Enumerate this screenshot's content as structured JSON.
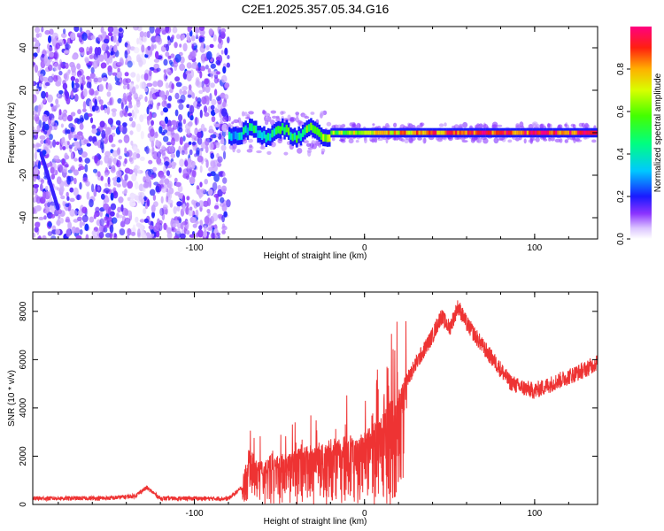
{
  "title": "C2E1.2025.357.05.34.G16",
  "chart_data": [
    {
      "type": "heatmap",
      "name": "spectrogram",
      "xlabel": "Height of straight line (km)",
      "ylabel": "Frequency (Hz)",
      "xlim": [
        -195,
        137
      ],
      "ylim": [
        -50,
        50
      ],
      "xticks": [
        {
          "v": -100,
          "t": "-100"
        },
        {
          "v": 0,
          "t": "0"
        },
        {
          "v": 100,
          "t": "100"
        }
      ],
      "yticks": [
        {
          "v": -40,
          "t": "-40"
        },
        {
          "v": -20,
          "t": "-20"
        },
        {
          "v": 0,
          "t": "0"
        },
        {
          "v": 20,
          "t": "20"
        },
        {
          "v": 40,
          "t": "40"
        }
      ],
      "colorbar": {
        "label": "Normalized spectral amplitude",
        "range": [
          0,
          1
        ],
        "ticks": [
          {
            "v": 0.0,
            "t": "0.0"
          },
          {
            "v": 0.2,
            "t": "0.2"
          },
          {
            "v": 0.4,
            "t": "0.4"
          },
          {
            "v": 0.6,
            "t": "0.6"
          },
          {
            "v": 0.8,
            "t": "0.8"
          }
        ]
      },
      "features": {
        "noise_region_x": [
          -195,
          -80
        ],
        "signal_start_x": -80,
        "signal_freq_hz": 0,
        "signal_amplitude_near_start": 0.35,
        "signal_amplitude_far": 0.9
      }
    },
    {
      "type": "line",
      "name": "snr",
      "xlabel": "Height of straight line (km)",
      "ylabel": "SNR (10 * v/v)",
      "xlim": [
        -195,
        137
      ],
      "ylim": [
        0,
        8800
      ],
      "xticks": [
        {
          "v": -100,
          "t": "-100"
        },
        {
          "v": 0,
          "t": "0"
        },
        {
          "v": 100,
          "t": "100"
        }
      ],
      "yticks": [
        {
          "v": 0,
          "t": "0"
        },
        {
          "v": 2000,
          "t": "2000"
        },
        {
          "v": 4000,
          "t": "4000"
        },
        {
          "v": 6000,
          "t": "6000"
        },
        {
          "v": 8000,
          "t": "8000"
        }
      ],
      "color": "#ee3333",
      "series": [
        {
          "name": "SNR envelope",
          "x": [
            -195,
            -150,
            -135,
            -128,
            -120,
            -80,
            -72,
            -68,
            -60,
            -40,
            -20,
            0,
            10,
            20,
            30,
            40,
            45,
            50,
            55,
            60,
            70,
            80,
            85,
            90,
            100,
            110,
            120,
            130,
            137
          ],
          "y": [
            250,
            260,
            350,
            700,
            250,
            240,
            700,
            2000,
            1500,
            2000,
            2400,
            2700,
            3400,
            4500,
            5800,
            7000,
            7800,
            7300,
            8200,
            7500,
            6500,
            5600,
            5100,
            4900,
            4700,
            5000,
            5300,
            5600,
            5900
          ]
        }
      ]
    }
  ]
}
